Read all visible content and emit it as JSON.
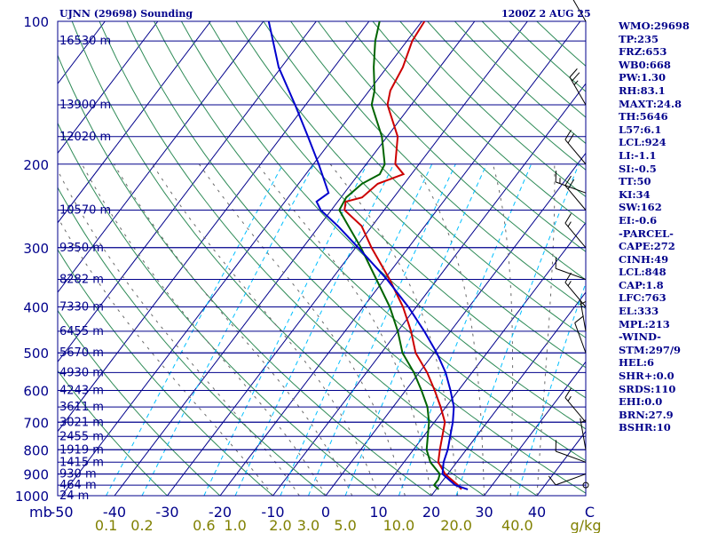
{
  "header": {
    "station": "UJNN (29698) Sounding",
    "time": "1200Z  2 AUG 25"
  },
  "indices": [
    "WMO:29698",
    "TP:235",
    "FRZ:653",
    "WB0:668",
    "PW:1.30",
    "RH:83.1",
    "MAXT:24.8",
    "TH:5646",
    "L57:6.1",
    "LCL:924",
    "LI:-1.1",
    "SI:-0.5",
    "TT:50",
    "KI:34",
    "SW:162",
    "EI:-0.6",
    "-PARCEL-",
    "CAPE:272",
    "CINH:49",
    "LCL:848",
    "CAP:1.8",
    "LFC:763",
    "EL:333",
    "MPL:213",
    "-WIND-",
    "STM:297/9",
    "HEL:6",
    "SHR+:0.0",
    "SRDS:110",
    "EHI:0.0",
    "BRN:27.9",
    "BSHR:10"
  ],
  "colors": {
    "frame": "#00008b",
    "isotherm": "#00008b",
    "isobar": "#00008b",
    "dry_adiabat": "#2e8b57",
    "moist_adiabat": "#696969",
    "mixing_ratio": "#00bfff",
    "temperature": "#cc0000",
    "dewpoint": "#006400",
    "parcel": "#0000cd",
    "mixing_label": "#808000",
    "wind_barb": "#000000"
  },
  "chart_data": {
    "type": "line",
    "title": "UJNN (29698) Sounding",
    "y_scale": "log-pressure",
    "ylim_hpa": [
      1000,
      100
    ],
    "xlim_degc_at_1000": [
      -50,
      50
    ],
    "pressure_ticks": [
      100,
      200,
      300,
      400,
      500,
      600,
      700,
      800,
      900,
      1000
    ],
    "temperature_ticks": [
      -50,
      -40,
      -30,
      -20,
      -10,
      0,
      10,
      20,
      30,
      40,
      50
    ],
    "temperature_tick_labels": [
      "-50",
      "-40",
      "-30",
      "-20",
      "-10",
      "0",
      "10",
      "20",
      "30",
      "40",
      "C"
    ],
    "y_unit_label": "mb",
    "height_levels": [
      {
        "p": 110,
        "label": "16530 m"
      },
      {
        "p": 150,
        "label": "13900 m"
      },
      {
        "p": 175,
        "label": "12020 m"
      },
      {
        "p": 250,
        "label": "10570 m"
      },
      {
        "p": 300,
        "label": "9350 m"
      },
      {
        "p": 350,
        "label": "8282 m"
      },
      {
        "p": 400,
        "label": "7330 m"
      },
      {
        "p": 450,
        "label": "6455 m"
      },
      {
        "p": 500,
        "label": "5670 m"
      },
      {
        "p": 550,
        "label": "4930 m"
      },
      {
        "p": 600,
        "label": "4243 m"
      },
      {
        "p": 650,
        "label": "3611 m"
      },
      {
        "p": 700,
        "label": "3021 m"
      },
      {
        "p": 750,
        "label": "2455 m"
      },
      {
        "p": 800,
        "label": "1919 m"
      },
      {
        "p": 850,
        "label": "1415 m"
      },
      {
        "p": 900,
        "label": "930 m"
      },
      {
        "p": 950,
        "label": "464 m"
      },
      {
        "p": 1000,
        "label": "24 m"
      }
    ],
    "mixing_ratio_labels": [
      {
        "w": 0.1,
        "label": "0.1"
      },
      {
        "w": 0.2,
        "label": "0.2"
      },
      {
        "w": 0.6,
        "label": "0.6"
      },
      {
        "w": 1.0,
        "label": "1.0"
      },
      {
        "w": 2.0,
        "label": "2.0"
      },
      {
        "w": 3.0,
        "label": "3.0"
      },
      {
        "w": 5.0,
        "label": "5.0"
      },
      {
        "w": 10.0,
        "label": "10.0"
      },
      {
        "w": 20.0,
        "label": "20.0"
      },
      {
        "w": 40.0,
        "label": "40.0"
      }
    ],
    "mixing_unit": "g/kg",
    "series": [
      {
        "key": "temperature",
        "points": [
          [
            970,
            24.8
          ],
          [
            950,
            23.5
          ],
          [
            925,
            21.5
          ],
          [
            900,
            19.5
          ],
          [
            850,
            16.5
          ],
          [
            800,
            15.0
          ],
          [
            700,
            12.0
          ],
          [
            650,
            9.0
          ],
          [
            600,
            5.5
          ],
          [
            550,
            1.5
          ],
          [
            500,
            -3.5
          ],
          [
            450,
            -7.5
          ],
          [
            400,
            -12.5
          ],
          [
            350,
            -19.0
          ],
          [
            300,
            -27.0
          ],
          [
            270,
            -32.0
          ],
          [
            250,
            -37.5
          ],
          [
            240,
            -38.5
          ],
          [
            235,
            -36.0
          ],
          [
            220,
            -35.0
          ],
          [
            210,
            -31.5
          ],
          [
            200,
            -34.5
          ],
          [
            175,
            -38.0
          ],
          [
            150,
            -44.5
          ],
          [
            140,
            -46.0
          ],
          [
            125,
            -47.0
          ],
          [
            110,
            -49.0
          ],
          [
            100,
            -49.5
          ]
        ]
      },
      {
        "key": "dewpoint",
        "points": [
          [
            970,
            20.5
          ],
          [
            950,
            19.0
          ],
          [
            925,
            19.0
          ],
          [
            900,
            18.5
          ],
          [
            850,
            15.0
          ],
          [
            800,
            12.5
          ],
          [
            700,
            9.0
          ],
          [
            650,
            6.5
          ],
          [
            600,
            3.0
          ],
          [
            550,
            -1.0
          ],
          [
            500,
            -6.0
          ],
          [
            450,
            -10.0
          ],
          [
            400,
            -15.0
          ],
          [
            350,
            -21.5
          ],
          [
            300,
            -29.0
          ],
          [
            270,
            -34.5
          ],
          [
            250,
            -38.5
          ],
          [
            235,
            -39.0
          ],
          [
            220,
            -38.0
          ],
          [
            210,
            -36.0
          ],
          [
            200,
            -36.5
          ],
          [
            175,
            -41.0
          ],
          [
            150,
            -47.5
          ],
          [
            140,
            -49.0
          ],
          [
            125,
            -52.5
          ],
          [
            110,
            -56.0
          ],
          [
            100,
            -58.0
          ]
        ]
      },
      {
        "key": "parcel",
        "points": [
          [
            970,
            26.0
          ],
          [
            950,
            23.0
          ],
          [
            900,
            19.0
          ],
          [
            850,
            17.5
          ],
          [
            800,
            16.5
          ],
          [
            700,
            13.5
          ],
          [
            650,
            11.5
          ],
          [
            600,
            8.5
          ],
          [
            550,
            5.0
          ],
          [
            500,
            0.5
          ],
          [
            450,
            -5.0
          ],
          [
            400,
            -11.5
          ],
          [
            350,
            -19.5
          ],
          [
            300,
            -29.5
          ],
          [
            270,
            -36.5
          ],
          [
            250,
            -42.0
          ],
          [
            240,
            -44.0
          ],
          [
            230,
            -43.0
          ],
          [
            200,
            -49.0
          ],
          [
            175,
            -55.0
          ],
          [
            150,
            -62.0
          ],
          [
            125,
            -70.5
          ],
          [
            100,
            -79.0
          ]
        ]
      }
    ],
    "wind_barbs": [
      {
        "p": 100,
        "dir": 330,
        "speed": 20
      },
      {
        "p": 150,
        "dir": 330,
        "speed": 25
      },
      {
        "p": 200,
        "dir": 320,
        "speed": 20
      },
      {
        "p": 230,
        "dir": 290,
        "speed": 15
      },
      {
        "p": 250,
        "dir": 320,
        "speed": 20
      },
      {
        "p": 300,
        "dir": 320,
        "speed": 15
      },
      {
        "p": 350,
        "dir": 290,
        "speed": 10
      },
      {
        "p": 400,
        "dir": 320,
        "speed": 15
      },
      {
        "p": 450,
        "dir": 350,
        "speed": 5
      },
      {
        "p": 500,
        "dir": 340,
        "speed": 10
      },
      {
        "p": 700,
        "dir": 320,
        "speed": 15
      },
      {
        "p": 800,
        "dir": 350,
        "speed": 5
      },
      {
        "p": 850,
        "dir": 290,
        "speed": 10
      },
      {
        "p": 900,
        "dir": 250,
        "speed": 10
      },
      {
        "p": 950,
        "dir": 0,
        "speed": 0
      }
    ]
  }
}
